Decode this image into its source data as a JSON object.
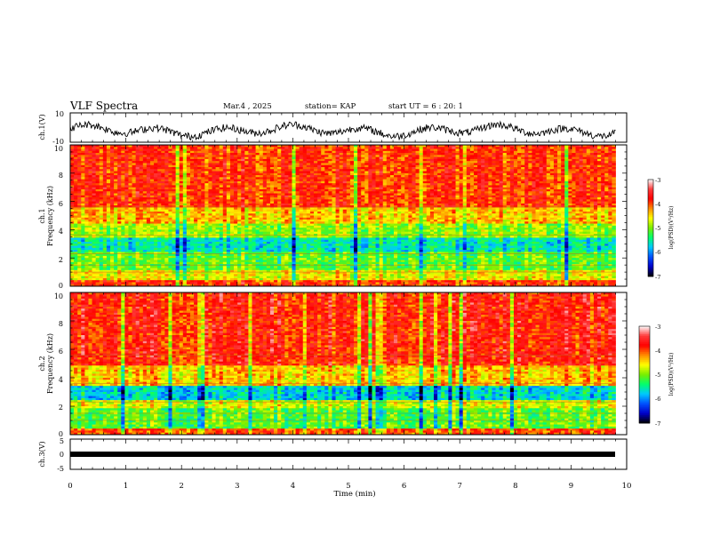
{
  "header": {
    "title": "VLF Spectra",
    "date": "Mar.4 , 2025",
    "station": "station= KAP",
    "start_time": "start UT =  6 : 20: 1"
  },
  "chart_data": [
    {
      "type": "line",
      "panel": "ch1-waveform",
      "ylabel": "ch.1(V)",
      "ylim": [
        -10,
        10
      ],
      "yticks": [
        10,
        -10
      ],
      "xlim": [
        0,
        10
      ],
      "series": [
        {
          "values_description": "",
          "style": "noisy black trace oscillating mostly between 3 and -7 V"
        }
      ]
    },
    {
      "type": "heatmap",
      "panel": "ch1-spectrogram",
      "ylabel": "ch.1\nFrequency (kHz)",
      "ylabel_line1": "ch.1",
      "ylabel_line2": "Frequency (kHz)",
      "ylim": [
        0,
        10
      ],
      "yticks": [
        0,
        2,
        4,
        6,
        8,
        10
      ],
      "xlim": [
        0,
        9.8
      ],
      "bands_khz": [
        {
          "from": 0,
          "to": 0.5,
          "level": -3.9
        },
        {
          "from": 0.5,
          "to": 1.2,
          "level": -4.6
        },
        {
          "from": 1.2,
          "to": 2.4,
          "level": -5.1
        },
        {
          "from": 2.4,
          "to": 3.4,
          "level": -5.6
        },
        {
          "from": 3.4,
          "to": 4.4,
          "level": -4.9
        },
        {
          "from": 4.4,
          "to": 5.6,
          "level": -4.4
        },
        {
          "from": 5.6,
          "to": 10,
          "level": -3.9
        }
      ],
      "colorbar": {
        "label": "log(PSD)(V²/Hz)",
        "ticks": [
          -3,
          -4,
          -5,
          -6,
          -7
        ],
        "range": [
          -7,
          -3
        ]
      }
    },
    {
      "type": "heatmap",
      "panel": "ch2-spectrogram",
      "ylabel_line1": "ch.2",
      "ylabel_line2": "Frequency (kHz)",
      "ylim": [
        0,
        10
      ],
      "yticks": [
        0,
        2,
        4,
        6,
        8,
        10
      ],
      "xlim": [
        0,
        9.8
      ],
      "bands_khz": [
        {
          "from": 0,
          "to": 0.5,
          "level": -4.0
        },
        {
          "from": 0.5,
          "to": 1.9,
          "level": -5.1
        },
        {
          "from": 1.9,
          "to": 2.4,
          "level": -4.7
        },
        {
          "from": 2.4,
          "to": 3.4,
          "level": -5.7
        },
        {
          "from": 3.4,
          "to": 4.8,
          "level": -4.4
        },
        {
          "from": 4.8,
          "to": 10,
          "level": -3.8
        }
      ],
      "colorbar": {
        "label": "log(PSD)(V²/Hz)",
        "ticks": [
          -3,
          -4,
          -5,
          -6,
          -7
        ],
        "range": [
          -7,
          -3
        ]
      }
    },
    {
      "type": "line",
      "panel": "ch3-waveform",
      "ylabel": "ch.3(V)",
      "ylim": [
        -5,
        5
      ],
      "yticks": [
        5,
        0,
        -5
      ],
      "xlim": [
        0,
        10
      ],
      "series": [
        {
          "constant_value": -1.8,
          "style": "thick black band"
        }
      ]
    }
  ],
  "x_axis": {
    "label": "Time (min)",
    "ticks": [
      "0",
      "1",
      "2",
      "3",
      "4",
      "5",
      "6",
      "7",
      "8",
      "9",
      "10"
    ],
    "range": [
      0,
      10
    ]
  },
  "colors": {
    "scale": [
      "#000000",
      "#0000cc",
      "#0044ff",
      "#00ccff",
      "#00ff66",
      "#66ee00",
      "#ffff00",
      "#ff8800",
      "#ff0000",
      "#ff2020",
      "#ffffff"
    ]
  }
}
